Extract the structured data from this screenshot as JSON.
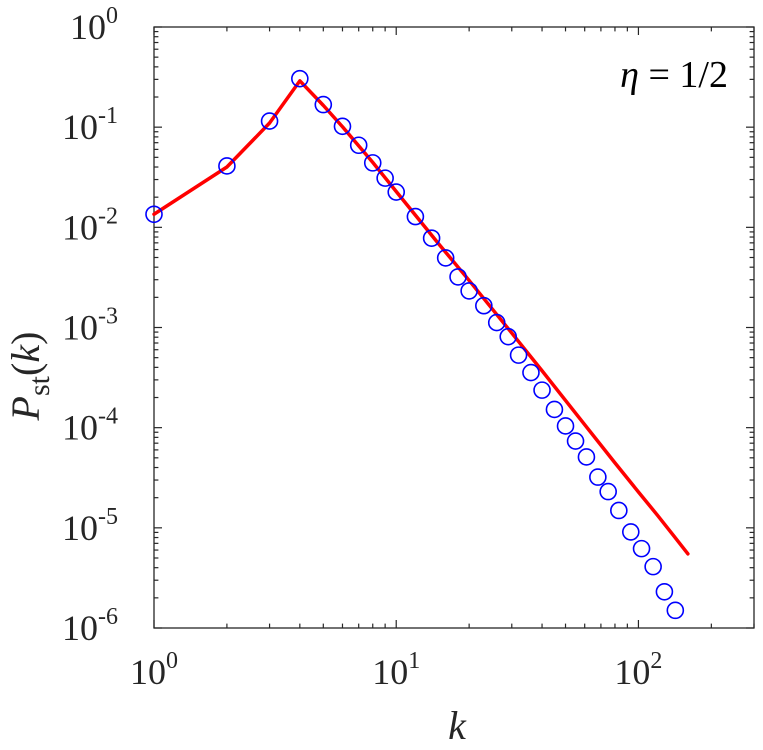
{
  "chart_data": {
    "type": "line",
    "scale": {
      "x": "log",
      "y": "log"
    },
    "xlim": [
      1,
      300
    ],
    "ylim": [
      1e-06,
      1
    ],
    "xlabel": "k",
    "ylabel": {
      "main": "P",
      "sub": "st",
      "arg": "(k)"
    },
    "annotation": {
      "greek": "η",
      "text": " = 1/2"
    },
    "grid": false,
    "legend": "none",
    "x_ticks": [
      {
        "value": 1,
        "base": "10",
        "exp": "0"
      },
      {
        "value": 10,
        "base": "10",
        "exp": "1"
      },
      {
        "value": 100,
        "base": "10",
        "exp": "2"
      }
    ],
    "y_ticks": [
      {
        "value": 1,
        "base": "10",
        "exp": "0"
      },
      {
        "value": 0.1,
        "base": "10",
        "exp": "-1"
      },
      {
        "value": 0.01,
        "base": "10",
        "exp": "-2"
      },
      {
        "value": 0.001,
        "base": "10",
        "exp": "-3"
      },
      {
        "value": 0.0001,
        "base": "10",
        "exp": "-4"
      },
      {
        "value": 1e-05,
        "base": "10",
        "exp": "-5"
      },
      {
        "value": 1e-06,
        "base": "10",
        "exp": "-6"
      }
    ],
    "series": [
      {
        "kind": "markers",
        "marker": "circle",
        "color": "#0000ff",
        "x": [
          1,
          2,
          3,
          4,
          5,
          6,
          7,
          8,
          9,
          10,
          12,
          14,
          16,
          18,
          20,
          23,
          26,
          29,
          32,
          36,
          40,
          45,
          50,
          55,
          61,
          68,
          75,
          83,
          93,
          103,
          115,
          128,
          142
        ],
        "y": [
          0.0135,
          0.041,
          0.115,
          0.305,
          0.168,
          0.102,
          0.066,
          0.044,
          0.031,
          0.0225,
          0.0128,
          0.0078,
          0.00495,
          0.0032,
          0.00232,
          0.00165,
          0.00112,
          0.00081,
          0.00053,
          0.000355,
          0.000237,
          0.000152,
          0.000104,
          7.35e-05,
          5.1e-05,
          3.21e-05,
          2.3e-05,
          1.49e-05,
          9.1e-06,
          6.2e-06,
          4.1e-06,
          2.3e-06,
          1.5e-06
        ]
      },
      {
        "kind": "line",
        "color": "#ff0000",
        "x": [
          1,
          2,
          3,
          4,
          5,
          6,
          8,
          10,
          15,
          20,
          30,
          40,
          60,
          80,
          100,
          120,
          140,
          160
        ],
        "y": [
          0.0135,
          0.04,
          0.11,
          0.29,
          0.165,
          0.101,
          0.0445,
          0.0228,
          0.0068,
          0.00295,
          0.00088,
          0.00037,
          0.000107,
          4.45e-05,
          2.28e-05,
          1.33e-05,
          8.3e-06,
          5.5e-06
        ]
      }
    ]
  }
}
